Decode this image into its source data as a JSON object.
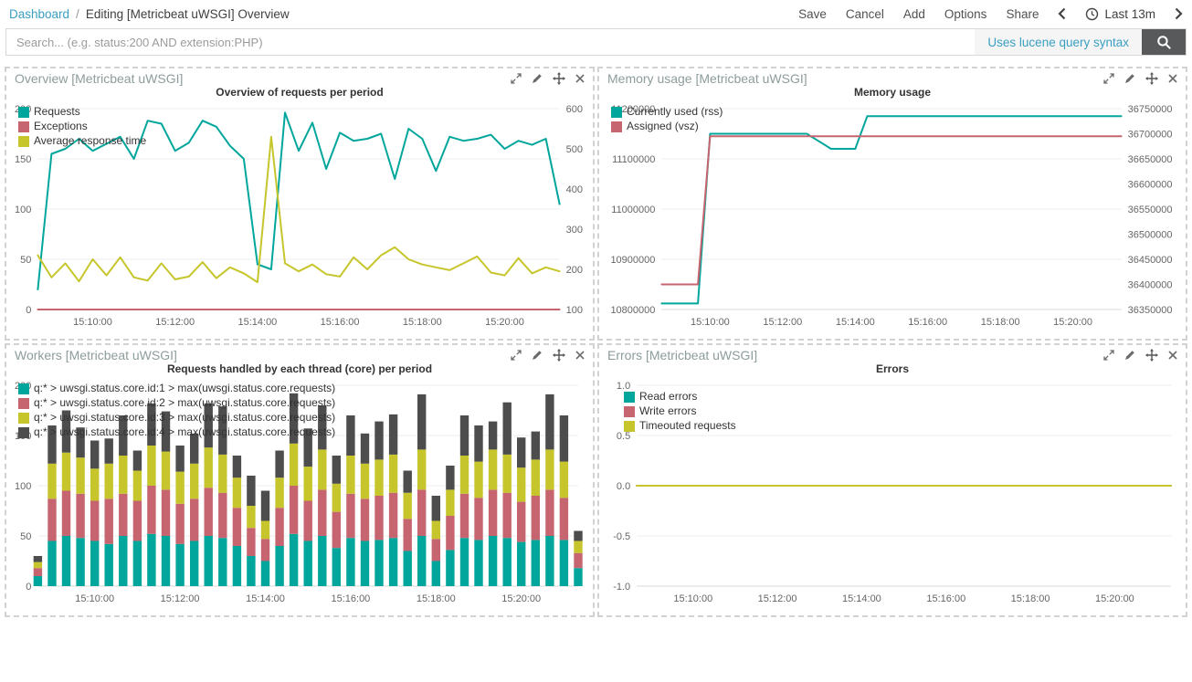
{
  "topbar": {
    "breadcrumb_link": "Dashboard",
    "breadcrumb_sep": "/",
    "breadcrumb_current": "Editing [Metricbeat uWSGI] Overview",
    "actions": [
      "Save",
      "Cancel",
      "Add",
      "Options",
      "Share"
    ],
    "time_label": "Last 13m"
  },
  "search": {
    "placeholder": "Search... (e.g. status:200 AND extension:PHP)",
    "hint": "Uses lucene query syntax"
  },
  "colors": {
    "teal": "#00a69b",
    "red": "#c66570",
    "yellow": "#c6c62c",
    "gray": "#4d4d4d",
    "link": "#3a9fc1"
  },
  "panels": [
    {
      "title": "Overview [Metricbeat uWSGI]",
      "chart_title": "Overview of requests per period"
    },
    {
      "title": "Memory usage [Metricbeat uWSGI]",
      "chart_title": "Memory usage"
    },
    {
      "title": "Workers [Metricbeat uWSGI]",
      "chart_title": "Requests handled by each thread (core) per period"
    },
    {
      "title": "Errors [Metricbeat uWSGI]",
      "chart_title": "Errors"
    }
  ],
  "chart_data": [
    {
      "type": "line",
      "title": "Overview of requests per period",
      "n_points": 39,
      "x_ticks": [
        {
          "i": 4,
          "label": "15:10:00"
        },
        {
          "i": 10,
          "label": "15:12:00"
        },
        {
          "i": 16,
          "label": "15:14:00"
        },
        {
          "i": 22,
          "label": "15:16:00"
        },
        {
          "i": 28,
          "label": "15:18:00"
        },
        {
          "i": 34,
          "label": "15:20:00"
        }
      ],
      "left_axis": {
        "min": 0,
        "max": 200,
        "ticks": [
          {
            "v": 0,
            "label": "0"
          },
          {
            "v": 50,
            "label": "50"
          },
          {
            "v": 100,
            "label": "100"
          },
          {
            "v": 150,
            "label": "150"
          },
          {
            "v": 200,
            "label": "200"
          }
        ]
      },
      "right_axis": {
        "min": 100,
        "max": 600,
        "ticks": [
          {
            "v": 100,
            "label": "100"
          },
          {
            "v": 200,
            "label": "200"
          },
          {
            "v": 300,
            "label": "300"
          },
          {
            "v": 400,
            "label": "400"
          },
          {
            "v": 500,
            "label": "500"
          },
          {
            "v": 600,
            "label": "600"
          }
        ]
      },
      "series": [
        {
          "name": "Requests",
          "color": "#00a69b",
          "axis": "left",
          "values": [
            20,
            155,
            160,
            170,
            158,
            165,
            172,
            150,
            188,
            185,
            158,
            166,
            188,
            182,
            163,
            150,
            45,
            40,
            196,
            158,
            186,
            140,
            176,
            168,
            170,
            175,
            130,
            180,
            170,
            138,
            172,
            168,
            170,
            174,
            160,
            168,
            164,
            170,
            105
          ]
        },
        {
          "name": "Exceptions",
          "color": "#c66570",
          "axis": "left",
          "values": [
            0,
            0,
            0,
            0,
            0,
            0,
            0,
            0,
            0,
            0,
            0,
            0,
            0,
            0,
            0,
            0,
            0,
            0,
            0,
            0,
            0,
            0,
            0,
            0,
            0,
            0,
            0,
            0,
            0,
            0,
            0,
            0,
            0,
            0,
            0,
            0,
            0,
            0,
            0
          ]
        },
        {
          "name": "Average response time",
          "color": "#c6c62c",
          "axis": "right",
          "values": [
            235,
            180,
            215,
            170,
            225,
            185,
            230,
            180,
            172,
            215,
            175,
            182,
            218,
            178,
            205,
            190,
            168,
            530,
            215,
            195,
            212,
            188,
            182,
            230,
            200,
            235,
            255,
            225,
            212,
            205,
            198,
            215,
            232,
            192,
            185,
            228,
            190,
            205,
            195
          ]
        }
      ]
    },
    {
      "type": "line",
      "title": "Memory usage",
      "n_points": 39,
      "x_ticks": [
        {
          "i": 4,
          "label": "15:10:00"
        },
        {
          "i": 10,
          "label": "15:12:00"
        },
        {
          "i": 16,
          "label": "15:14:00"
        },
        {
          "i": 22,
          "label": "15:16:00"
        },
        {
          "i": 28,
          "label": "15:18:00"
        },
        {
          "i": 34,
          "label": "15:20:00"
        }
      ],
      "left_axis": {
        "min": 10800000,
        "max": 11200000,
        "ticks": [
          {
            "v": 10800000,
            "label": "10800000"
          },
          {
            "v": 10900000,
            "label": "10900000"
          },
          {
            "v": 11000000,
            "label": "11000000"
          },
          {
            "v": 11100000,
            "label": "11100000"
          },
          {
            "v": 11200000,
            "label": "11200000"
          }
        ]
      },
      "right_axis": {
        "min": 36350000,
        "max": 36750000,
        "ticks": [
          {
            "v": 36350000,
            "label": "36350000"
          },
          {
            "v": 36400000,
            "label": "36400000"
          },
          {
            "v": 36450000,
            "label": "36450000"
          },
          {
            "v": 36500000,
            "label": "36500000"
          },
          {
            "v": 36550000,
            "label": "36550000"
          },
          {
            "v": 36600000,
            "label": "36600000"
          },
          {
            "v": 36650000,
            "label": "36650000"
          },
          {
            "v": 36700000,
            "label": "36700000"
          },
          {
            "v": 36750000,
            "label": "36750000"
          }
        ]
      },
      "series": [
        {
          "name": "Currently used (rss)",
          "color": "#00a69b",
          "axis": "left",
          "values": [
            10812000,
            10812000,
            10812000,
            10812000,
            11150000,
            11150000,
            11150000,
            11150000,
            11150000,
            11150000,
            11150000,
            11150000,
            11150000,
            11135000,
            11120000,
            11120000,
            11120000,
            11185000,
            11185000,
            11185000,
            11185000,
            11185000,
            11185000,
            11185000,
            11185000,
            11185000,
            11185000,
            11185000,
            11185000,
            11185000,
            11185000,
            11185000,
            11185000,
            11185000,
            11185000,
            11185000,
            11185000,
            11185000,
            11185000
          ]
        },
        {
          "name": "Assigned (vsz)",
          "color": "#c66570",
          "axis": "right",
          "values": [
            36400000,
            36400000,
            36400000,
            36400000,
            36695000,
            36695000,
            36695000,
            36695000,
            36695000,
            36695000,
            36695000,
            36695000,
            36695000,
            36695000,
            36695000,
            36695000,
            36695000,
            36695000,
            36695000,
            36695000,
            36695000,
            36695000,
            36695000,
            36695000,
            36695000,
            36695000,
            36695000,
            36695000,
            36695000,
            36695000,
            36695000,
            36695000,
            36695000,
            36695000,
            36695000,
            36695000,
            36695000,
            36695000,
            36695000
          ]
        }
      ]
    },
    {
      "type": "stacked_bar",
      "title": "Requests handled by each thread (core) per period",
      "n_points": 39,
      "x_ticks": [
        {
          "i": 4,
          "label": "15:10:00"
        },
        {
          "i": 10,
          "label": "15:12:00"
        },
        {
          "i": 16,
          "label": "15:14:00"
        },
        {
          "i": 22,
          "label": "15:16:00"
        },
        {
          "i": 28,
          "label": "15:18:00"
        },
        {
          "i": 34,
          "label": "15:20:00"
        }
      ],
      "left_axis": {
        "min": 0,
        "max": 200,
        "ticks": [
          {
            "v": 0,
            "label": "0"
          },
          {
            "v": 50,
            "label": "50"
          },
          {
            "v": 100,
            "label": "100"
          },
          {
            "v": 150,
            "label": "150"
          },
          {
            "v": 200,
            "label": "200"
          }
        ]
      },
      "series": [
        {
          "name": "q:* > uwsgi.status.core.id:1 > max(uwsgi.status.core.requests)",
          "color": "#00a69b",
          "axis": "left",
          "values": [
            10,
            45,
            50,
            48,
            45,
            42,
            50,
            45,
            52,
            50,
            42,
            45,
            50,
            48,
            40,
            30,
            25,
            40,
            52,
            45,
            50,
            38,
            48,
            45,
            46,
            48,
            35,
            50,
            25,
            36,
            48,
            46,
            50,
            48,
            44,
            46,
            50,
            46,
            18
          ]
        },
        {
          "name": "q:* > uwsgi.status.core.id:2 > max(uwsgi.status.core.requests)",
          "color": "#c66570",
          "axis": "left",
          "values": [
            8,
            42,
            45,
            44,
            40,
            45,
            42,
            40,
            48,
            46,
            40,
            42,
            48,
            45,
            38,
            28,
            22,
            38,
            48,
            40,
            46,
            36,
            44,
            42,
            44,
            45,
            32,
            46,
            22,
            34,
            44,
            42,
            46,
            45,
            40,
            44,
            46,
            42,
            15
          ]
        },
        {
          "name": "q:* > uwsgi.status.core.id:3 > max(uwsgi.status.core.requests)",
          "color": "#c6c62c",
          "axis": "left",
          "values": [
            6,
            35,
            38,
            36,
            32,
            35,
            38,
            30,
            40,
            38,
            32,
            35,
            40,
            38,
            30,
            22,
            18,
            30,
            42,
            34,
            40,
            28,
            38,
            35,
            36,
            38,
            26,
            40,
            18,
            26,
            38,
            36,
            40,
            38,
            34,
            36,
            40,
            36,
            12
          ]
        },
        {
          "name": "q:* > uwsgi.status.core.id:4 > max(uwsgi.status.core.requests)",
          "color": "#4d4d4d",
          "axis": "left",
          "values": [
            6,
            38,
            42,
            30,
            28,
            25,
            40,
            20,
            42,
            40,
            26,
            30,
            44,
            48,
            22,
            30,
            30,
            27,
            50,
            38,
            44,
            28,
            40,
            30,
            38,
            40,
            22,
            55,
            25,
            24,
            40,
            36,
            28,
            52,
            30,
            28,
            55,
            46,
            10
          ]
        }
      ]
    },
    {
      "type": "line",
      "title": "Errors",
      "n_points": 39,
      "x_ticks": [
        {
          "i": 4,
          "label": "15:10:00"
        },
        {
          "i": 10,
          "label": "15:12:00"
        },
        {
          "i": 16,
          "label": "15:14:00"
        },
        {
          "i": 22,
          "label": "15:16:00"
        },
        {
          "i": 28,
          "label": "15:18:00"
        },
        {
          "i": 34,
          "label": "15:20:00"
        }
      ],
      "left_axis": {
        "min": -1,
        "max": 1,
        "ticks": [
          {
            "v": -1,
            "label": "-1.0"
          },
          {
            "v": -0.5,
            "label": "-0.5"
          },
          {
            "v": 0,
            "label": "0.0"
          },
          {
            "v": 0.5,
            "label": "0.5"
          },
          {
            "v": 1,
            "label": "1.0"
          }
        ]
      },
      "series": [
        {
          "name": "Read errors",
          "color": "#00a69b",
          "axis": "left",
          "values": [
            0,
            0,
            0,
            0,
            0,
            0,
            0,
            0,
            0,
            0,
            0,
            0,
            0,
            0,
            0,
            0,
            0,
            0,
            0,
            0,
            0,
            0,
            0,
            0,
            0,
            0,
            0,
            0,
            0,
            0,
            0,
            0,
            0,
            0,
            0,
            0,
            0,
            0,
            0
          ]
        },
        {
          "name": "Write errors",
          "color": "#c66570",
          "axis": "left",
          "values": [
            0,
            0,
            0,
            0,
            0,
            0,
            0,
            0,
            0,
            0,
            0,
            0,
            0,
            0,
            0,
            0,
            0,
            0,
            0,
            0,
            0,
            0,
            0,
            0,
            0,
            0,
            0,
            0,
            0,
            0,
            0,
            0,
            0,
            0,
            0,
            0,
            0,
            0,
            0
          ]
        },
        {
          "name": "Timeouted requests",
          "color": "#c6c62c",
          "axis": "left",
          "values": [
            0,
            0,
            0,
            0,
            0,
            0,
            0,
            0,
            0,
            0,
            0,
            0,
            0,
            0,
            0,
            0,
            0,
            0,
            0,
            0,
            0,
            0,
            0,
            0,
            0,
            0,
            0,
            0,
            0,
            0,
            0,
            0,
            0,
            0,
            0,
            0,
            0,
            0,
            0
          ]
        }
      ]
    }
  ]
}
